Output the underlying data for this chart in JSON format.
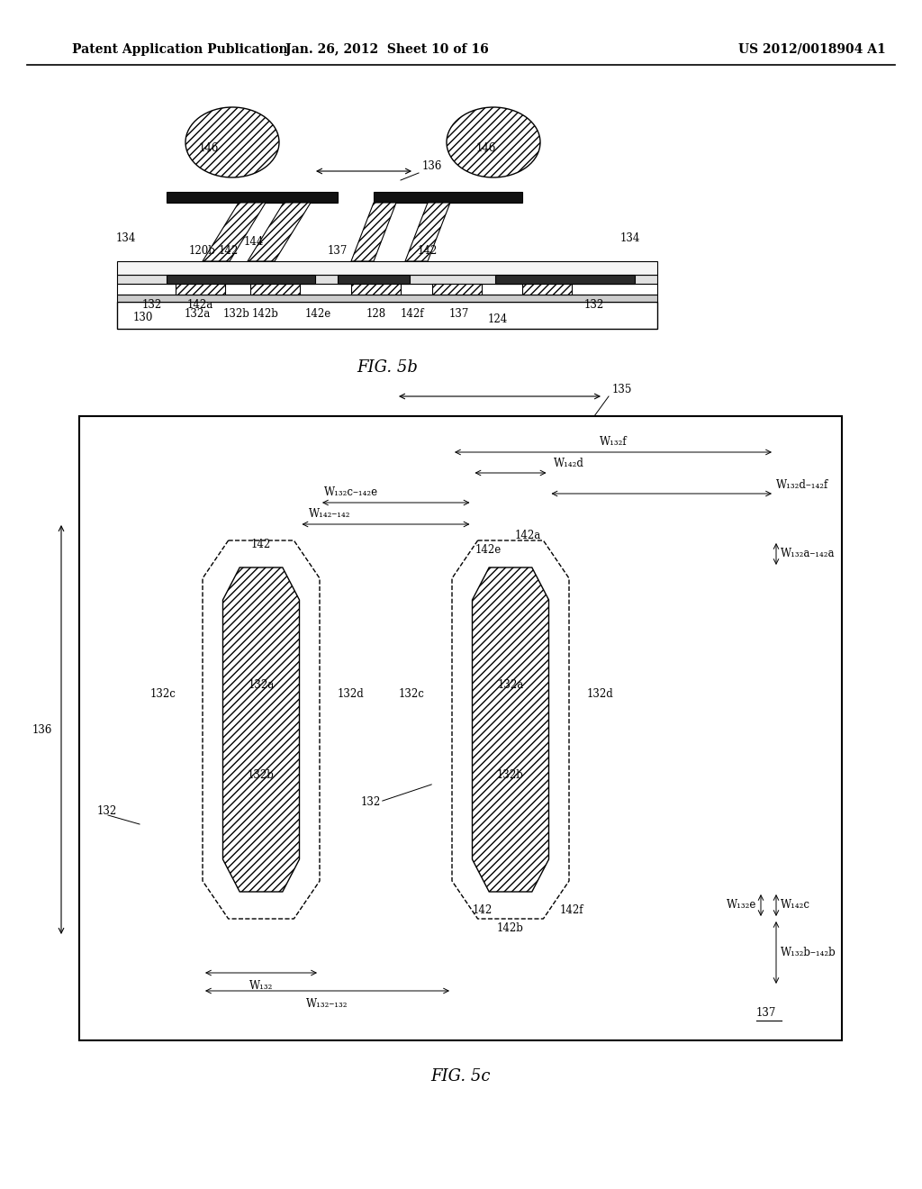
{
  "header_left": "Patent Application Publication",
  "header_mid": "Jan. 26, 2012  Sheet 10 of 16",
  "header_right": "US 2012/0018904 A1",
  "bg_color": "#ffffff",
  "fig5b_caption": "FIG. 5b",
  "fig5c_caption": "FIG. 5c"
}
